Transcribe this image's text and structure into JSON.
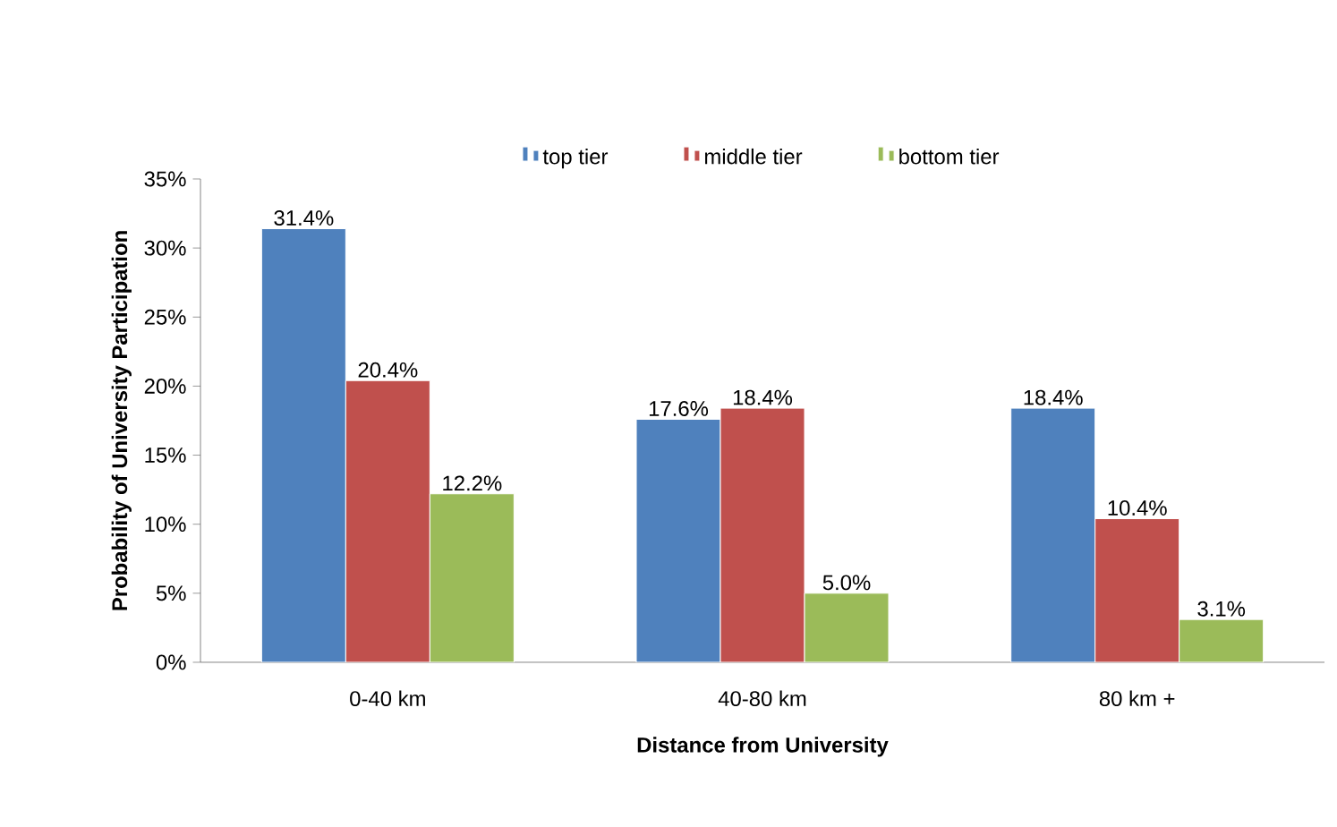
{
  "chart_data": {
    "type": "bar",
    "xlabel": "Distance from University",
    "ylabel": "Probability of University Participation",
    "categories": [
      "0-40 km",
      "40-80 km",
      "80 km +"
    ],
    "series": [
      {
        "name": "top tier",
        "color": "#4f81bd",
        "values": [
          31.4,
          17.6,
          18.4
        ],
        "value_labels": [
          "31.4%",
          "17.6%",
          "18.4%"
        ]
      },
      {
        "name": "middle tier",
        "color": "#c0504d",
        "values": [
          20.4,
          18.4,
          10.4
        ],
        "value_labels": [
          "20.4%",
          "18.4%",
          "10.4%"
        ]
      },
      {
        "name": "bottom tier",
        "color": "#9bbb59",
        "values": [
          12.2,
          5.0,
          3.1
        ],
        "value_labels": [
          "12.2%",
          "5.0%",
          "3.1%"
        ]
      }
    ],
    "ylim": [
      0,
      35
    ],
    "yticks": [
      {
        "value": 0,
        "label": "0%"
      },
      {
        "value": 5,
        "label": "5%"
      },
      {
        "value": 10,
        "label": "10%"
      },
      {
        "value": 15,
        "label": "15%"
      },
      {
        "value": 20,
        "label": "20%"
      },
      {
        "value": 25,
        "label": "25%"
      },
      {
        "value": 30,
        "label": "30%"
      },
      {
        "value": 35,
        "label": "35%"
      }
    ],
    "legend": "top",
    "grid": false
  }
}
